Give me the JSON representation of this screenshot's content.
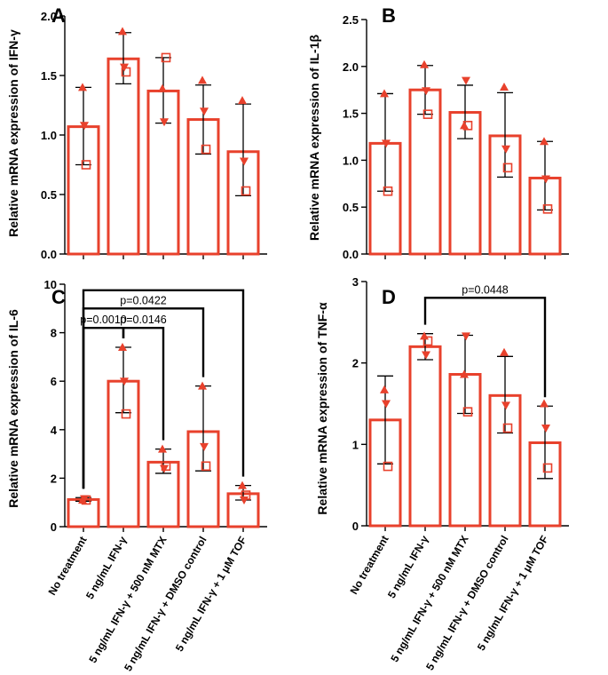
{
  "chart_data": [
    {
      "type": "bar",
      "panel": "A",
      "ylabel": "Relative mRNA expression of IFN-γ",
      "ylim": [
        0,
        2.0
      ],
      "yticks": [
        "0.0",
        "0.5",
        "1.0",
        "1.5",
        "2.0"
      ],
      "categories": [
        "No treatment",
        "5 ng/mL IFN-γ",
        "5 ng/mL IFN-γ + 500 nM MTX",
        "5 ng/mL IFN-γ + DMSO control",
        "5 ng/mL IFN-γ + 1 μM TOF"
      ],
      "values": [
        1.07,
        1.64,
        1.37,
        1.13,
        0.86
      ],
      "err_low": [
        0.75,
        1.43,
        1.1,
        0.84,
        0.49
      ],
      "err_high": [
        1.4,
        1.86,
        1.65,
        1.42,
        1.26
      ],
      "points": [
        [
          1.4,
          1.08,
          0.75
        ],
        [
          1.87,
          1.57,
          1.53
        ],
        [
          1.39,
          1.11,
          1.65
        ],
        [
          1.46,
          1.2,
          0.88
        ],
        [
          1.29,
          0.78,
          0.53
        ]
      ],
      "brackets": []
    },
    {
      "type": "bar",
      "panel": "B",
      "ylabel": "Relative mRNA expression of IL-1β",
      "ylim": [
        0,
        2.5
      ],
      "yticks": [
        "0.0",
        "0.5",
        "1.0",
        "1.5",
        "2.0",
        "2.5"
      ],
      "categories": [
        "No treatment",
        "5 ng/mL IFN-γ",
        "5 ng/mL IFN-γ + 500 nM MTX",
        "5 ng/mL IFN-γ + DMSO control",
        "5 ng/mL IFN-γ + 1 μM TOF"
      ],
      "values": [
        1.18,
        1.75,
        1.51,
        1.26,
        0.81
      ],
      "err_low": [
        0.67,
        1.49,
        1.23,
        0.82,
        0.47
      ],
      "err_high": [
        1.71,
        2.01,
        1.8,
        1.72,
        1.2
      ],
      "points": [
        [
          1.71,
          1.18,
          0.67
        ],
        [
          2.02,
          1.74,
          1.49
        ],
        [
          1.37,
          1.85,
          1.37
        ],
        [
          1.78,
          1.12,
          0.92
        ],
        [
          1.2,
          0.8,
          0.48
        ]
      ],
      "brackets": []
    },
    {
      "type": "bar",
      "panel": "C",
      "ylabel": "Relative mRNA expression of IL-6",
      "ylim": [
        0,
        10
      ],
      "yticks": [
        "0",
        "2",
        "4",
        "6",
        "8",
        "10"
      ],
      "categories": [
        "No treatment",
        "5 ng/mL IFN-γ",
        "5 ng/mL IFN-γ + 500 nM MTX",
        "5 ng/mL IFN-γ + DMSO control",
        "5 ng/mL IFN-γ + 1 μM TOF"
      ],
      "values": [
        1.12,
        6.0,
        2.66,
        3.92,
        1.36
      ],
      "err_low": [
        1.05,
        4.7,
        2.2,
        2.3,
        1.1
      ],
      "err_high": [
        1.2,
        7.4,
        3.2,
        5.8,
        1.7
      ],
      "points": [
        [
          1.1,
          1.15,
          1.1
        ],
        [
          7.4,
          6.0,
          4.65
        ],
        [
          3.2,
          2.4,
          2.5
        ],
        [
          5.8,
          3.3,
          2.5
        ],
        [
          1.7,
          1.1,
          1.3
        ]
      ],
      "brackets": [
        {
          "from": 0,
          "to": 1,
          "level": 8.2,
          "label": "p=0.0010"
        },
        {
          "from": 1,
          "to": 2,
          "level": 8.2,
          "label": "p=0.0146"
        },
        {
          "from": 0,
          "to": 3,
          "level": 9.0,
          "label": "p=0.0422"
        },
        {
          "from": 0,
          "to": 4,
          "level": 9.75,
          "label": ""
        }
      ]
    },
    {
      "type": "bar",
      "panel": "D",
      "ylabel": "Relative mRNA expression of TNF-α",
      "ylim": [
        0,
        3
      ],
      "yticks": [
        "0",
        "1",
        "2",
        "3"
      ],
      "categories": [
        "No treatment",
        "5 ng/mL IFN-γ",
        "5 ng/mL IFN-γ + 500 nM MTX",
        "5 ng/mL IFN-γ + DMSO control",
        "5 ng/mL IFN-γ + 1 μM TOF"
      ],
      "values": [
        1.3,
        2.2,
        1.86,
        1.6,
        1.02
      ],
      "err_low": [
        0.76,
        2.04,
        1.38,
        1.14,
        0.58
      ],
      "err_high": [
        1.84,
        2.36,
        2.34,
        2.08,
        1.47
      ],
      "points": [
        [
          1.67,
          1.5,
          0.73
        ],
        [
          2.33,
          2.1,
          2.27
        ],
        [
          1.86,
          2.33,
          1.4
        ],
        [
          2.13,
          1.48,
          1.2
        ],
        [
          1.5,
          1.2,
          0.71
        ]
      ],
      "brackets": [
        {
          "from": 1,
          "to": 4,
          "level": 2.8,
          "label": "p=0.0448"
        }
      ]
    }
  ],
  "colors": {
    "bar": "#e8412c",
    "error": "#000000"
  },
  "marker_pattern": [
    "triangle",
    "triangle-down",
    "square"
  ]
}
